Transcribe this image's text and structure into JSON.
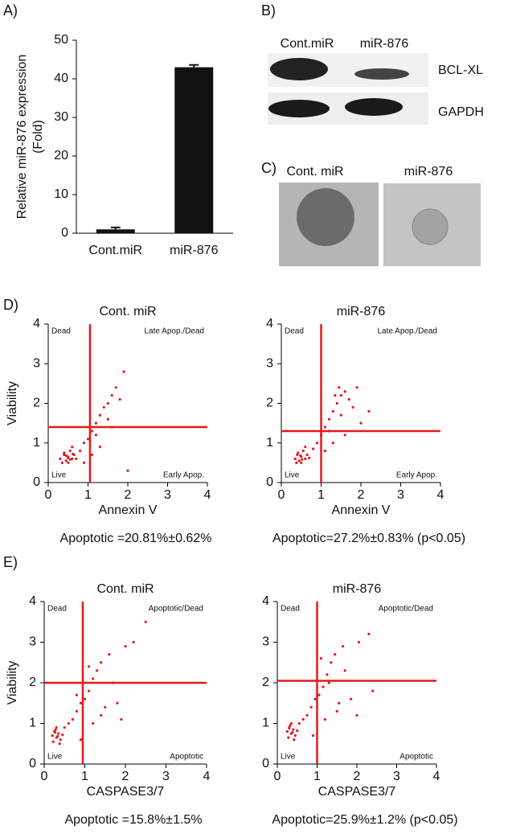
{
  "panel_labels": [
    "A)",
    "B)",
    "C)",
    "D)",
    "E)"
  ],
  "blot": {
    "lanes": [
      "Cont.miR",
      "miR-876"
    ],
    "bands": [
      "BCL-XL",
      "GAPDH"
    ]
  },
  "spheroids": {
    "lanes": [
      "Cont. miR",
      "miR-876"
    ]
  },
  "chart_data": [
    {
      "type": "bar",
      "ylabel": [
        "Relative miR-876 expression",
        "(Fold)"
      ],
      "categories": [
        "Cont.miR",
        "miR-876"
      ],
      "values": [
        1,
        43
      ],
      "error": [
        0.5,
        0.6
      ],
      "color": "#111111",
      "ylim": [
        0,
        50
      ],
      "yticks": [
        0,
        10,
        20,
        30,
        40,
        50
      ]
    },
    {
      "type": "scatter",
      "title": "Cont. miR",
      "xlabel": "Annexin V",
      "ylabel": "Viability",
      "caption": "Apoptotic =20.81%±0.62%",
      "quadrants": [
        "Dead",
        "Late Apop./Dead",
        "Live",
        "Early Apop."
      ],
      "gate_x": 1.05,
      "gate_y": 1.4,
      "color": "#e31a1c",
      "xlim": [
        0,
        4
      ],
      "ylim": [
        0,
        4
      ],
      "xticks": [
        0,
        1,
        2,
        3,
        4
      ],
      "yticks": [
        0,
        1,
        2,
        3,
        4
      ],
      "x": [
        0.3,
        0.4,
        0.45,
        0.5,
        0.55,
        0.6,
        0.65,
        0.5,
        0.4,
        0.7,
        0.35,
        0.6,
        0.8,
        0.9,
        1.0,
        1.1,
        1.2,
        1.3,
        1.4,
        1.5,
        1.6,
        1.7,
        1.2,
        1.5,
        1.8,
        1.3,
        0.9,
        2.0,
        1.1,
        1.6,
        0.55,
        0.45,
        0.62,
        0.5,
        1.9
      ],
      "values": [
        0.6,
        0.7,
        0.55,
        0.65,
        0.8,
        0.6,
        0.7,
        0.5,
        0.75,
        0.6,
        0.5,
        0.9,
        0.8,
        1.0,
        1.1,
        1.3,
        1.5,
        1.7,
        1.9,
        2.0,
        2.2,
        2.4,
        1.2,
        1.6,
        2.1,
        0.9,
        0.5,
        0.3,
        0.7,
        1.4,
        0.58,
        0.68,
        0.72,
        0.62,
        2.8
      ]
    },
    {
      "type": "scatter",
      "title": "miR-876",
      "xlabel": "Annexin V",
      "caption": "Apoptotic=27.2%±0.83% (p<0.05)",
      "quadrants": [
        "Dead",
        "Late Apop./Dead",
        "Live",
        "Early Apop."
      ],
      "gate_x": 1.0,
      "gate_y": 1.3,
      "color": "#e31a1c",
      "xlim": [
        0,
        4
      ],
      "ylim": [
        0,
        4
      ],
      "xticks": [
        0,
        1,
        2,
        3,
        4
      ],
      "yticks": [
        0,
        1,
        2,
        3,
        4
      ],
      "x": [
        0.35,
        0.4,
        0.45,
        0.5,
        0.55,
        0.6,
        0.65,
        0.5,
        0.42,
        0.7,
        0.38,
        0.6,
        0.8,
        0.9,
        1.0,
        1.1,
        1.2,
        1.3,
        1.4,
        1.5,
        1.6,
        1.7,
        1.2,
        1.5,
        1.8,
        1.3,
        1.45,
        2.0,
        1.1,
        1.6,
        0.52,
        0.48,
        1.35,
        2.2,
        1.9
      ],
      "values": [
        0.6,
        0.7,
        0.55,
        0.65,
        0.8,
        0.6,
        0.7,
        0.5,
        0.75,
        0.62,
        0.5,
        0.9,
        0.85,
        1.0,
        1.2,
        1.4,
        1.6,
        1.8,
        2.0,
        2.2,
        2.3,
        2.1,
        1.3,
        1.7,
        1.9,
        1.0,
        2.4,
        1.5,
        0.8,
        1.2,
        0.58,
        0.68,
        2.2,
        1.8,
        2.4
      ]
    },
    {
      "type": "scatter",
      "title": "Cont. miR",
      "xlabel": "CASPASE3/7",
      "ylabel": "Viability",
      "caption": "Apoptotic =15.8%±1.5%",
      "quadrants": [
        "Dead",
        "Apoptotic/Dead",
        "Live",
        "Apoptotic"
      ],
      "gate_x": 0.95,
      "gate_y": 2.0,
      "color": "#e31a1c",
      "xlim": [
        0,
        4
      ],
      "ylim": [
        0,
        4
      ],
      "xticks": [
        0,
        1,
        2,
        3,
        4
      ],
      "yticks": [
        0,
        1,
        2,
        3,
        4
      ],
      "x": [
        0.2,
        0.25,
        0.3,
        0.35,
        0.4,
        0.3,
        0.22,
        0.45,
        0.28,
        0.38,
        0.5,
        0.6,
        0.7,
        0.8,
        0.9,
        1.0,
        1.1,
        1.2,
        1.3,
        1.4,
        1.5,
        1.6,
        1.8,
        2.0,
        2.2,
        1.2,
        0.9,
        1.7,
        2.5,
        1.1,
        0.33,
        0.27,
        1.4,
        0.8,
        1.9
      ],
      "values": [
        0.7,
        0.8,
        0.65,
        0.75,
        0.6,
        0.9,
        0.55,
        0.72,
        0.85,
        0.5,
        0.9,
        1.0,
        1.1,
        1.3,
        1.5,
        1.6,
        1.8,
        2.1,
        2.3,
        2.5,
        1.4,
        2.7,
        1.5,
        2.9,
        3.0,
        1.0,
        0.6,
        2.0,
        3.5,
        2.4,
        0.68,
        0.78,
        1.2,
        1.7,
        1.1
      ]
    },
    {
      "type": "scatter",
      "title": "miR-876",
      "xlabel": "CASPASE3/7",
      "caption": "Apoptotic=25.9%±1.2% (p<0.05)",
      "quadrants": [
        "Dead",
        "Apoptotic/Dead",
        "Live",
        "Apoptotic"
      ],
      "gate_x": 1.0,
      "gate_y": 2.05,
      "color": "#e31a1c",
      "xlim": [
        0,
        4
      ],
      "ylim": [
        0,
        4
      ],
      "xticks": [
        0,
        1,
        2,
        3,
        4
      ],
      "yticks": [
        0,
        1,
        2,
        3,
        4
      ],
      "x": [
        0.25,
        0.3,
        0.35,
        0.4,
        0.45,
        0.35,
        0.28,
        0.5,
        0.32,
        0.42,
        0.55,
        0.65,
        0.75,
        0.85,
        0.95,
        1.05,
        1.15,
        1.25,
        1.35,
        1.45,
        1.55,
        1.65,
        1.85,
        2.05,
        2.3,
        1.2,
        0.9,
        1.7,
        2.4,
        1.1,
        0.38,
        0.3,
        1.5,
        2.0,
        1.3
      ],
      "values": [
        0.8,
        0.9,
        0.75,
        0.85,
        0.7,
        1.0,
        0.65,
        0.82,
        0.95,
        0.6,
        1.0,
        1.1,
        1.2,
        1.4,
        1.6,
        1.7,
        1.9,
        2.2,
        2.5,
        2.7,
        1.5,
        2.9,
        1.6,
        3.0,
        3.2,
        1.1,
        0.7,
        2.3,
        1.8,
        2.6,
        0.78,
        0.88,
        1.3,
        1.2,
        2.0
      ]
    }
  ]
}
